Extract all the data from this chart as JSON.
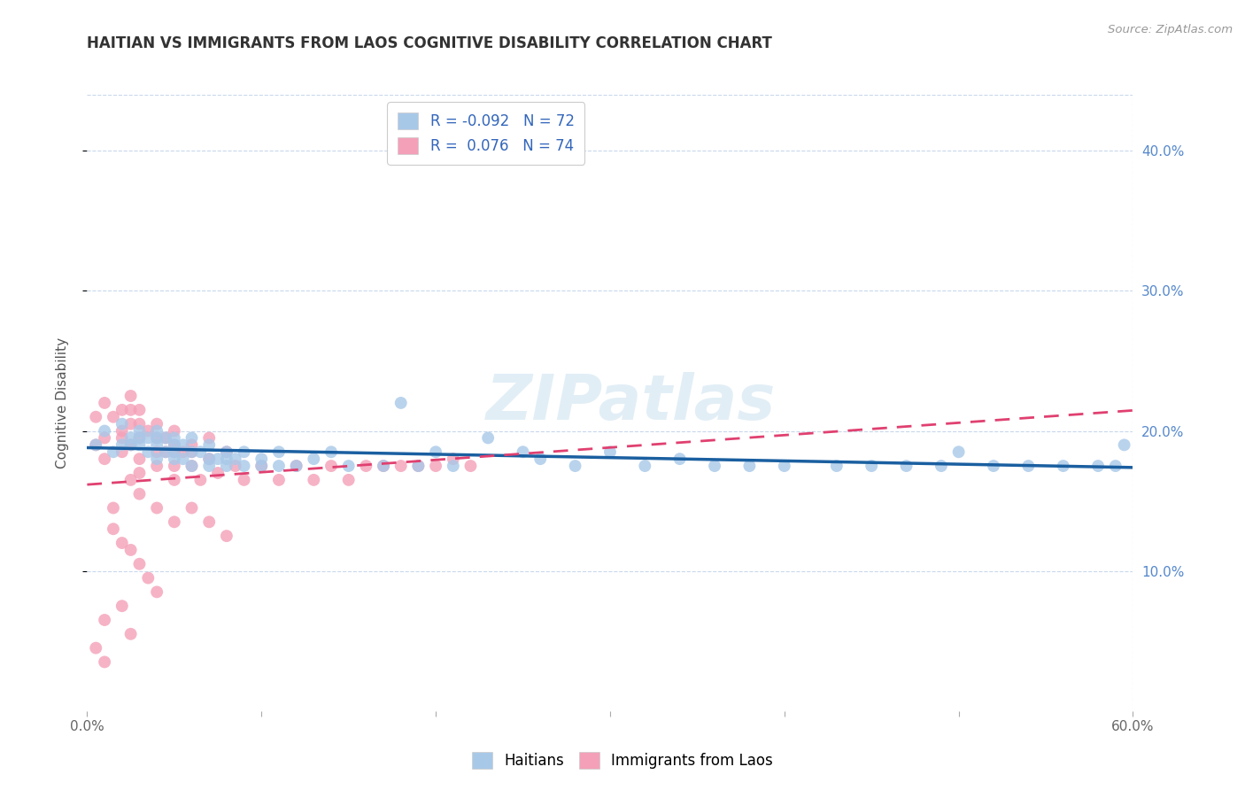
{
  "title": "HAITIAN VS IMMIGRANTS FROM LAOS COGNITIVE DISABILITY CORRELATION CHART",
  "source": "Source: ZipAtlas.com",
  "ylabel": "Cognitive Disability",
  "xlim": [
    0.0,
    0.6
  ],
  "ylim": [
    0.0,
    0.44
  ],
  "xticks": [
    0.0,
    0.1,
    0.2,
    0.3,
    0.4,
    0.5,
    0.6
  ],
  "yticks": [
    0.1,
    0.2,
    0.3,
    0.4
  ],
  "R_haitian": -0.092,
  "N_haitian": 72,
  "R_laos": 0.076,
  "N_laos": 74,
  "color_haitian": "#a8c8e8",
  "color_laos": "#f4a0b8",
  "line_color_haitian": "#1a5fa0",
  "line_color_laos": "#e04070",
  "background_color": "#ffffff",
  "grid_color": "#c8d8ec",
  "watermark": "ZIPatlas",
  "haitian_x": [
    0.005,
    0.01,
    0.015,
    0.02,
    0.02,
    0.025,
    0.025,
    0.03,
    0.03,
    0.03,
    0.035,
    0.035,
    0.04,
    0.04,
    0.04,
    0.04,
    0.045,
    0.045,
    0.05,
    0.05,
    0.05,
    0.05,
    0.055,
    0.055,
    0.06,
    0.06,
    0.06,
    0.065,
    0.07,
    0.07,
    0.07,
    0.075,
    0.08,
    0.08,
    0.08,
    0.085,
    0.09,
    0.09,
    0.1,
    0.1,
    0.11,
    0.11,
    0.12,
    0.13,
    0.14,
    0.15,
    0.17,
    0.18,
    0.19,
    0.2,
    0.21,
    0.23,
    0.25,
    0.26,
    0.28,
    0.3,
    0.32,
    0.34,
    0.36,
    0.38,
    0.4,
    0.43,
    0.45,
    0.47,
    0.49,
    0.5,
    0.52,
    0.54,
    0.56,
    0.58,
    0.59,
    0.595
  ],
  "haitian_y": [
    0.19,
    0.2,
    0.185,
    0.19,
    0.205,
    0.19,
    0.195,
    0.19,
    0.195,
    0.2,
    0.185,
    0.195,
    0.18,
    0.19,
    0.195,
    0.2,
    0.185,
    0.195,
    0.18,
    0.185,
    0.19,
    0.195,
    0.18,
    0.19,
    0.175,
    0.185,
    0.195,
    0.185,
    0.175,
    0.18,
    0.19,
    0.18,
    0.175,
    0.18,
    0.185,
    0.18,
    0.175,
    0.185,
    0.18,
    0.175,
    0.175,
    0.185,
    0.175,
    0.18,
    0.185,
    0.175,
    0.175,
    0.22,
    0.175,
    0.185,
    0.175,
    0.195,
    0.185,
    0.18,
    0.175,
    0.185,
    0.175,
    0.18,
    0.175,
    0.175,
    0.175,
    0.175,
    0.175,
    0.175,
    0.175,
    0.185,
    0.175,
    0.175,
    0.175,
    0.175,
    0.175,
    0.19
  ],
  "laos_x": [
    0.005,
    0.005,
    0.01,
    0.01,
    0.01,
    0.015,
    0.02,
    0.02,
    0.02,
    0.02,
    0.025,
    0.025,
    0.025,
    0.025,
    0.03,
    0.03,
    0.03,
    0.03,
    0.03,
    0.035,
    0.04,
    0.04,
    0.04,
    0.04,
    0.045,
    0.045,
    0.05,
    0.05,
    0.05,
    0.05,
    0.05,
    0.055,
    0.06,
    0.06,
    0.06,
    0.065,
    0.07,
    0.07,
    0.075,
    0.08,
    0.085,
    0.09,
    0.1,
    0.11,
    0.12,
    0.13,
    0.14,
    0.15,
    0.16,
    0.17,
    0.18,
    0.19,
    0.2,
    0.21,
    0.22,
    0.03,
    0.04,
    0.05,
    0.06,
    0.07,
    0.08,
    0.025,
    0.015,
    0.015,
    0.02,
    0.025,
    0.03,
    0.035,
    0.04,
    0.01,
    0.02,
    0.025,
    0.005,
    0.01
  ],
  "laos_y": [
    0.19,
    0.21,
    0.195,
    0.22,
    0.18,
    0.21,
    0.215,
    0.2,
    0.195,
    0.185,
    0.225,
    0.215,
    0.205,
    0.19,
    0.215,
    0.205,
    0.195,
    0.18,
    0.17,
    0.2,
    0.205,
    0.195,
    0.185,
    0.175,
    0.195,
    0.185,
    0.2,
    0.19,
    0.185,
    0.175,
    0.165,
    0.185,
    0.19,
    0.185,
    0.175,
    0.165,
    0.195,
    0.18,
    0.17,
    0.185,
    0.175,
    0.165,
    0.175,
    0.165,
    0.175,
    0.165,
    0.175,
    0.165,
    0.175,
    0.175,
    0.175,
    0.175,
    0.175,
    0.18,
    0.175,
    0.155,
    0.145,
    0.135,
    0.145,
    0.135,
    0.125,
    0.165,
    0.145,
    0.13,
    0.12,
    0.115,
    0.105,
    0.095,
    0.085,
    0.065,
    0.075,
    0.055,
    0.045,
    0.035
  ]
}
